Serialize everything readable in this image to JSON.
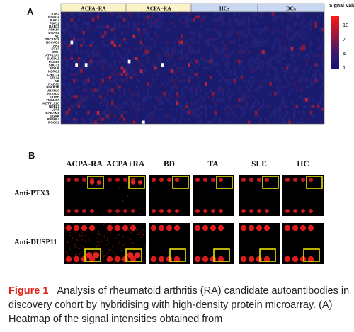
{
  "panel_a": {
    "letter": "A",
    "groups": [
      {
        "label": "ACPA−RA",
        "color": "#fbf3c8"
      },
      {
        "label": "ACPA−RA",
        "color": "#fbf3c8"
      },
      {
        "label": "HCs",
        "color": "#c9d8f2"
      },
      {
        "label": "DCs",
        "color": "#c9d8f2"
      }
    ],
    "genes": [
      "STK3",
      "HDAC4",
      "RAI14",
      "FGF12",
      "RAB15",
      "ARH1A",
      "CHAC2",
      "ND",
      "TBC1D19",
      "NCCAB1",
      "AK2",
      "PTX3",
      "ERH",
      "ATP13A5",
      "DUSP11",
      "PAGE5",
      "SUGT1",
      "MYLK",
      "NDRG1",
      "CHST11",
      "STK34",
      "ND",
      "RAB3D",
      "POLR3B",
      "UBXN10",
      "ATXN10",
      "DOHH",
      "TNFAIP1",
      "METTL21C",
      "NDEL1",
      "LSP1",
      "BABAM1",
      "DGKK",
      "PPP6R4",
      "PGCD2"
    ],
    "legend": {
      "title": "Signal Value",
      "ticks": [
        "10",
        "7",
        "4",
        "1"
      ]
    }
  },
  "panel_b": {
    "letter": "B",
    "columns": [
      "ACPA-RA",
      "ACPA+RA",
      "BD",
      "TA",
      "SLE",
      "HC"
    ],
    "rows": [
      {
        "label": "Anti-PTX3",
        "spot_intensity": [
          0.8,
          0.75,
          0.9,
          0.85,
          0.85,
          0.85
        ],
        "signal": [
          1,
          1,
          0,
          0,
          0,
          0
        ]
      },
      {
        "label": "Anti-DUSP11",
        "spot_intensity": [
          0.95,
          0.95,
          0.95,
          0.95,
          0.95,
          0.95
        ],
        "signal": [
          1,
          1,
          0,
          0,
          0,
          0
        ]
      }
    ]
  },
  "caption": {
    "figure_label": "Figure 1",
    "text": "Analysis of rheumatoid arthritis (RA) candidate autoantibodies in discovery cohort by hybridising with high-density protein microarray. (A) Heatmap of the signal intensities obtained from"
  }
}
